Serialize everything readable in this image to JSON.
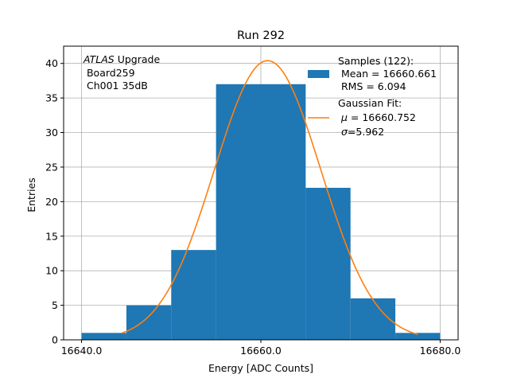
{
  "chart_data": {
    "type": "histogram",
    "title": "Run 292",
    "xlabel": "Energy [ADC Counts]",
    "ylabel": "Entries",
    "xlim": [
      16638,
      16682
    ],
    "ylim": [
      0,
      42.5
    ],
    "x_ticks": [
      16640.0,
      16660.0,
      16680.0
    ],
    "x_tick_labels": [
      "16640.0",
      "16660.0",
      "16680.0"
    ],
    "y_ticks": [
      0,
      5,
      10,
      15,
      20,
      25,
      30,
      35,
      40
    ],
    "y_tick_labels": [
      "0",
      "5",
      "10",
      "15",
      "20",
      "25",
      "30",
      "35",
      "40"
    ],
    "grid": true,
    "legend_position": "top-right",
    "bins": [
      {
        "x0": 16640,
        "x1": 16645,
        "count": 1
      },
      {
        "x0": 16645,
        "x1": 16650,
        "count": 5
      },
      {
        "x0": 16650,
        "x1": 16655,
        "count": 13
      },
      {
        "x0": 16655,
        "x1": 16660,
        "count": 37
      },
      {
        "x0": 16660,
        "x1": 16665,
        "count": 37
      },
      {
        "x0": 16665,
        "x1": 16670,
        "count": 22
      },
      {
        "x0": 16670,
        "x1": 16675,
        "count": 6
      },
      {
        "x0": 16675,
        "x1": 16680,
        "count": 1
      }
    ],
    "fit": {
      "type": "gaussian",
      "mu": 16660.752,
      "sigma": 5.962,
      "amplitude": 40.4,
      "x_range": [
        16644.5,
        16677.5
      ]
    },
    "annotation": {
      "experiment": "ATLAS",
      "experiment_suffix": " Upgrade",
      "line2": " Board259",
      "line3": " Ch001 35dB"
    },
    "legend": {
      "samples_title": "Samples (122):",
      "samples_mean": " Mean = 16660.661",
      "samples_rms": " RMS = 6.094",
      "fit_title": "Gaussian Fit:",
      "fit_mu_symbol": "μ",
      "fit_mu_value": " = 16660.752",
      "fit_sigma_symbol": "σ",
      "fit_sigma_value": "=5.962"
    },
    "colors": {
      "bars": "#1f77b4",
      "fit_line": "#ff7f0e",
      "grid": "#b0b0b0",
      "axes": "#000000"
    }
  }
}
